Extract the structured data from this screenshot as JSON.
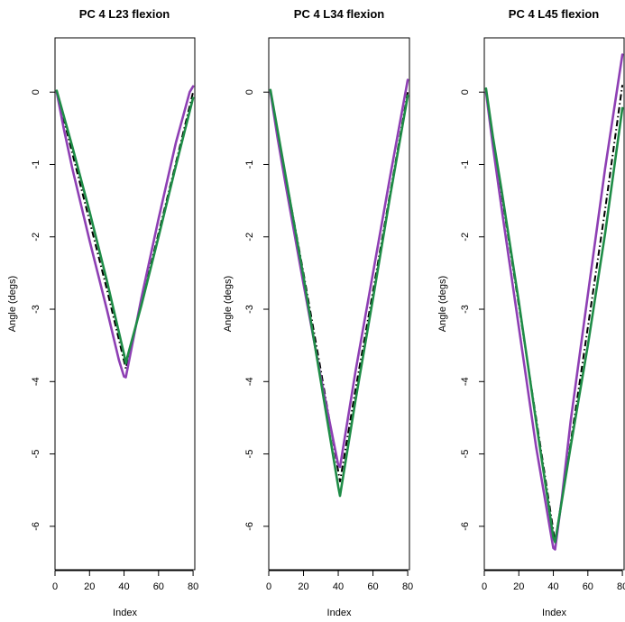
{
  "chart_data": [
    {
      "type": "line",
      "title": "PC 4 L23 flexion",
      "xlabel": "Index",
      "ylabel": "Angle (degs)",
      "xlim": [
        0,
        81
      ],
      "ylim": [
        -6.6,
        0.75
      ],
      "xticks": [
        0,
        20,
        40,
        60,
        80
      ],
      "yticks": [
        0,
        -1,
        -2,
        -3,
        -4,
        -5,
        -6
      ],
      "series": [
        {
          "color": "#000000",
          "style": "dashdot",
          "x": [
            1,
            10,
            20,
            30,
            41,
            50,
            60,
            70,
            80
          ],
          "y": [
            0.0,
            -0.84,
            -1.78,
            -2.72,
            -3.82,
            -2.92,
            -1.95,
            -0.98,
            0.0
          ]
        },
        {
          "color": "#8e3fb4",
          "style": "solid",
          "x": [
            1,
            5,
            10,
            20,
            30,
            37,
            40,
            41,
            43,
            50,
            60,
            70,
            78,
            80
          ],
          "y": [
            0.0,
            -0.5,
            -1.05,
            -2.05,
            -3.0,
            -3.7,
            -3.93,
            -3.94,
            -3.7,
            -2.85,
            -1.75,
            -0.7,
            0.0,
            0.08
          ]
        },
        {
          "color": "#1e8c46",
          "style": "solid",
          "x": [
            1,
            10,
            20,
            30,
            40,
            41,
            42,
            50,
            60,
            70,
            80
          ],
          "y": [
            0.02,
            -0.75,
            -1.65,
            -2.6,
            -3.62,
            -3.75,
            -3.65,
            -2.95,
            -2.0,
            -1.02,
            -0.08
          ]
        }
      ]
    },
    {
      "type": "line",
      "title": "PC 4 L34 flexion",
      "xlabel": "Index",
      "ylabel": "Angle (degs)",
      "xlim": [
        0,
        81
      ],
      "ylim": [
        -6.6,
        0.75
      ],
      "xticks": [
        0,
        20,
        40,
        60,
        80
      ],
      "yticks": [
        0,
        -1,
        -2,
        -3,
        -4,
        -5,
        -6
      ],
      "series": [
        {
          "color": "#000000",
          "style": "dashdot",
          "x": [
            1,
            10,
            20,
            30,
            41,
            50,
            60,
            70,
            80
          ],
          "y": [
            0.0,
            -1.2,
            -2.5,
            -3.85,
            -5.38,
            -4.1,
            -2.75,
            -1.38,
            0.0
          ]
        },
        {
          "color": "#8e3fb4",
          "style": "solid",
          "x": [
            1,
            5,
            10,
            20,
            30,
            40,
            41,
            50,
            60,
            70,
            80
          ],
          "y": [
            0.0,
            -0.62,
            -1.32,
            -2.65,
            -3.95,
            -5.15,
            -5.18,
            -3.85,
            -2.5,
            -1.15,
            0.17
          ]
        },
        {
          "color": "#1e8c46",
          "style": "solid",
          "x": [
            1,
            10,
            20,
            30,
            40,
            41,
            50,
            60,
            70,
            80
          ],
          "y": [
            0.03,
            -1.2,
            -2.55,
            -4.0,
            -5.45,
            -5.58,
            -4.25,
            -2.85,
            -1.42,
            -0.05
          ]
        }
      ]
    },
    {
      "type": "line",
      "title": "PC 4 L45 flexion",
      "xlabel": "Index",
      "ylabel": "Angle (degs)",
      "xlim": [
        0,
        81
      ],
      "ylim": [
        -6.6,
        0.75
      ],
      "xticks": [
        0,
        20,
        40,
        60,
        80
      ],
      "yticks": [
        0,
        -1,
        -2,
        -3,
        -4,
        -5,
        -6
      ],
      "series": [
        {
          "color": "#000000",
          "style": "dashdot",
          "x": [
            1,
            10,
            20,
            30,
            41,
            50,
            60,
            70,
            80
          ],
          "y": [
            0.0,
            -1.4,
            -2.95,
            -4.5,
            -6.22,
            -4.85,
            -3.25,
            -1.62,
            0.1
          ]
        },
        {
          "color": "#8e3fb4",
          "style": "solid",
          "x": [
            1,
            5,
            10,
            20,
            30,
            40,
            41,
            45,
            50,
            60,
            70,
            80
          ],
          "y": [
            0.0,
            -0.75,
            -1.6,
            -3.25,
            -4.9,
            -6.3,
            -6.32,
            -5.6,
            -4.55,
            -2.8,
            -1.05,
            0.52
          ]
        },
        {
          "color": "#1e8c46",
          "style": "solid",
          "x": [
            1,
            5,
            10,
            20,
            30,
            40,
            41,
            50,
            60,
            70,
            80
          ],
          "y": [
            0.05,
            -0.62,
            -1.35,
            -2.9,
            -4.55,
            -6.15,
            -6.22,
            -4.9,
            -3.5,
            -1.95,
            -0.22
          ]
        }
      ]
    }
  ]
}
